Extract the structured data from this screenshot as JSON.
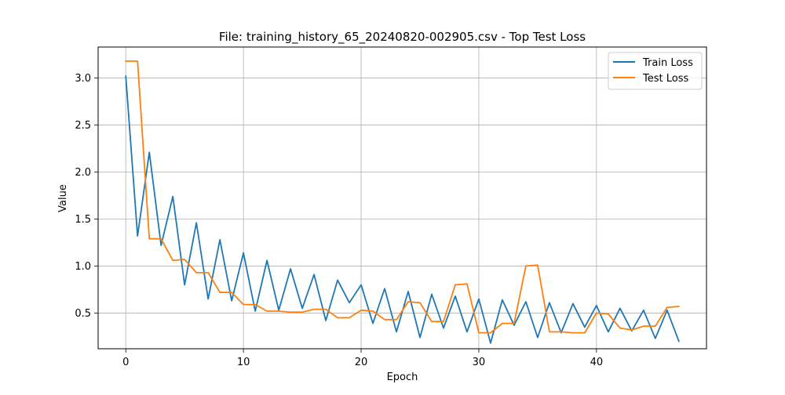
{
  "chart_data": {
    "type": "line",
    "title": "File: training_history_65_20240820-002905.csv - Top Test Loss",
    "xlabel": "Epoch",
    "ylabel": "Value",
    "xlim": [
      -2.35,
      49.35
    ],
    "ylim": [
      0.12,
      3.33
    ],
    "x_ticks": [
      0,
      10,
      20,
      30,
      40
    ],
    "y_ticks": [
      0.5,
      1.0,
      1.5,
      2.0,
      2.5,
      3.0
    ],
    "x_tick_labels": [
      "0",
      "10",
      "20",
      "30",
      "40"
    ],
    "y_tick_labels": [
      "0.5",
      "1.0",
      "1.5",
      "2.0",
      "2.5",
      "3.0"
    ],
    "grid": true,
    "legend_position": "top-right",
    "x": [
      0,
      1,
      2,
      3,
      4,
      5,
      6,
      7,
      8,
      9,
      10,
      11,
      12,
      13,
      14,
      15,
      16,
      17,
      18,
      19,
      20,
      21,
      22,
      23,
      24,
      25,
      26,
      27,
      28,
      29,
      30,
      31,
      32,
      33,
      34,
      35,
      36,
      37,
      38,
      39,
      40,
      41,
      42,
      43,
      44,
      45,
      46,
      47
    ],
    "series": [
      {
        "name": "Train Loss",
        "color": "#1f77b4",
        "values": [
          3.02,
          1.32,
          2.21,
          1.22,
          1.74,
          0.8,
          1.46,
          0.65,
          1.28,
          0.63,
          1.14,
          0.52,
          1.06,
          0.53,
          0.97,
          0.55,
          0.91,
          0.42,
          0.85,
          0.61,
          0.8,
          0.39,
          0.76,
          0.3,
          0.73,
          0.24,
          0.7,
          0.34,
          0.68,
          0.3,
          0.65,
          0.18,
          0.64,
          0.37,
          0.62,
          0.24,
          0.61,
          0.29,
          0.6,
          0.35,
          0.58,
          0.3,
          0.55,
          0.31,
          0.53,
          0.23,
          0.53,
          0.2
        ]
      },
      {
        "name": "Test Loss",
        "color": "#ff7f0e",
        "values": [
          3.18,
          3.18,
          1.29,
          1.29,
          1.06,
          1.07,
          0.93,
          0.93,
          0.72,
          0.72,
          0.59,
          0.59,
          0.52,
          0.52,
          0.51,
          0.51,
          0.54,
          0.54,
          0.45,
          0.45,
          0.53,
          0.52,
          0.43,
          0.43,
          0.62,
          0.61,
          0.41,
          0.41,
          0.8,
          0.81,
          0.29,
          0.29,
          0.39,
          0.39,
          1.0,
          1.01,
          0.3,
          0.3,
          0.29,
          0.29,
          0.5,
          0.49,
          0.34,
          0.32,
          0.36,
          0.36,
          0.56,
          0.57
        ]
      }
    ]
  }
}
